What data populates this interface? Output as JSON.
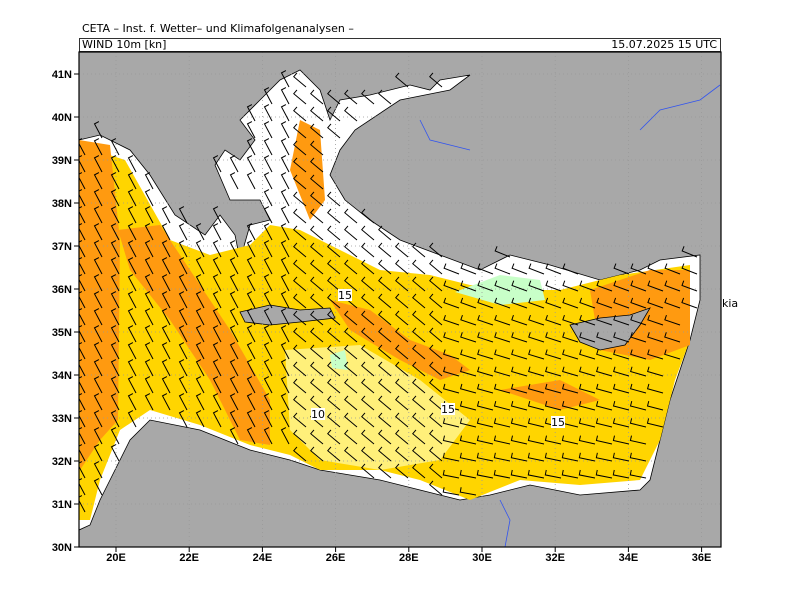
{
  "header": {
    "title": "CETA – Inst. f. Wetter– und Klimafolgenanalysen –",
    "field": "WIND 10m [kn]",
    "valid": "15.07.2025 15 UTC"
  },
  "map": {
    "lat_labels": [
      "41N",
      "40N",
      "39N",
      "38N",
      "37N",
      "36N",
      "35N",
      "34N",
      "33N",
      "32N",
      "31N",
      "30N"
    ],
    "lon_labels": [
      "20E",
      "22E",
      "24E",
      "26E",
      "28E",
      "30E",
      "32E",
      "34E",
      "36E"
    ],
    "contour_labels": [
      "15",
      "10",
      "15",
      "15"
    ],
    "place_labels": [
      "kia"
    ]
  }
}
